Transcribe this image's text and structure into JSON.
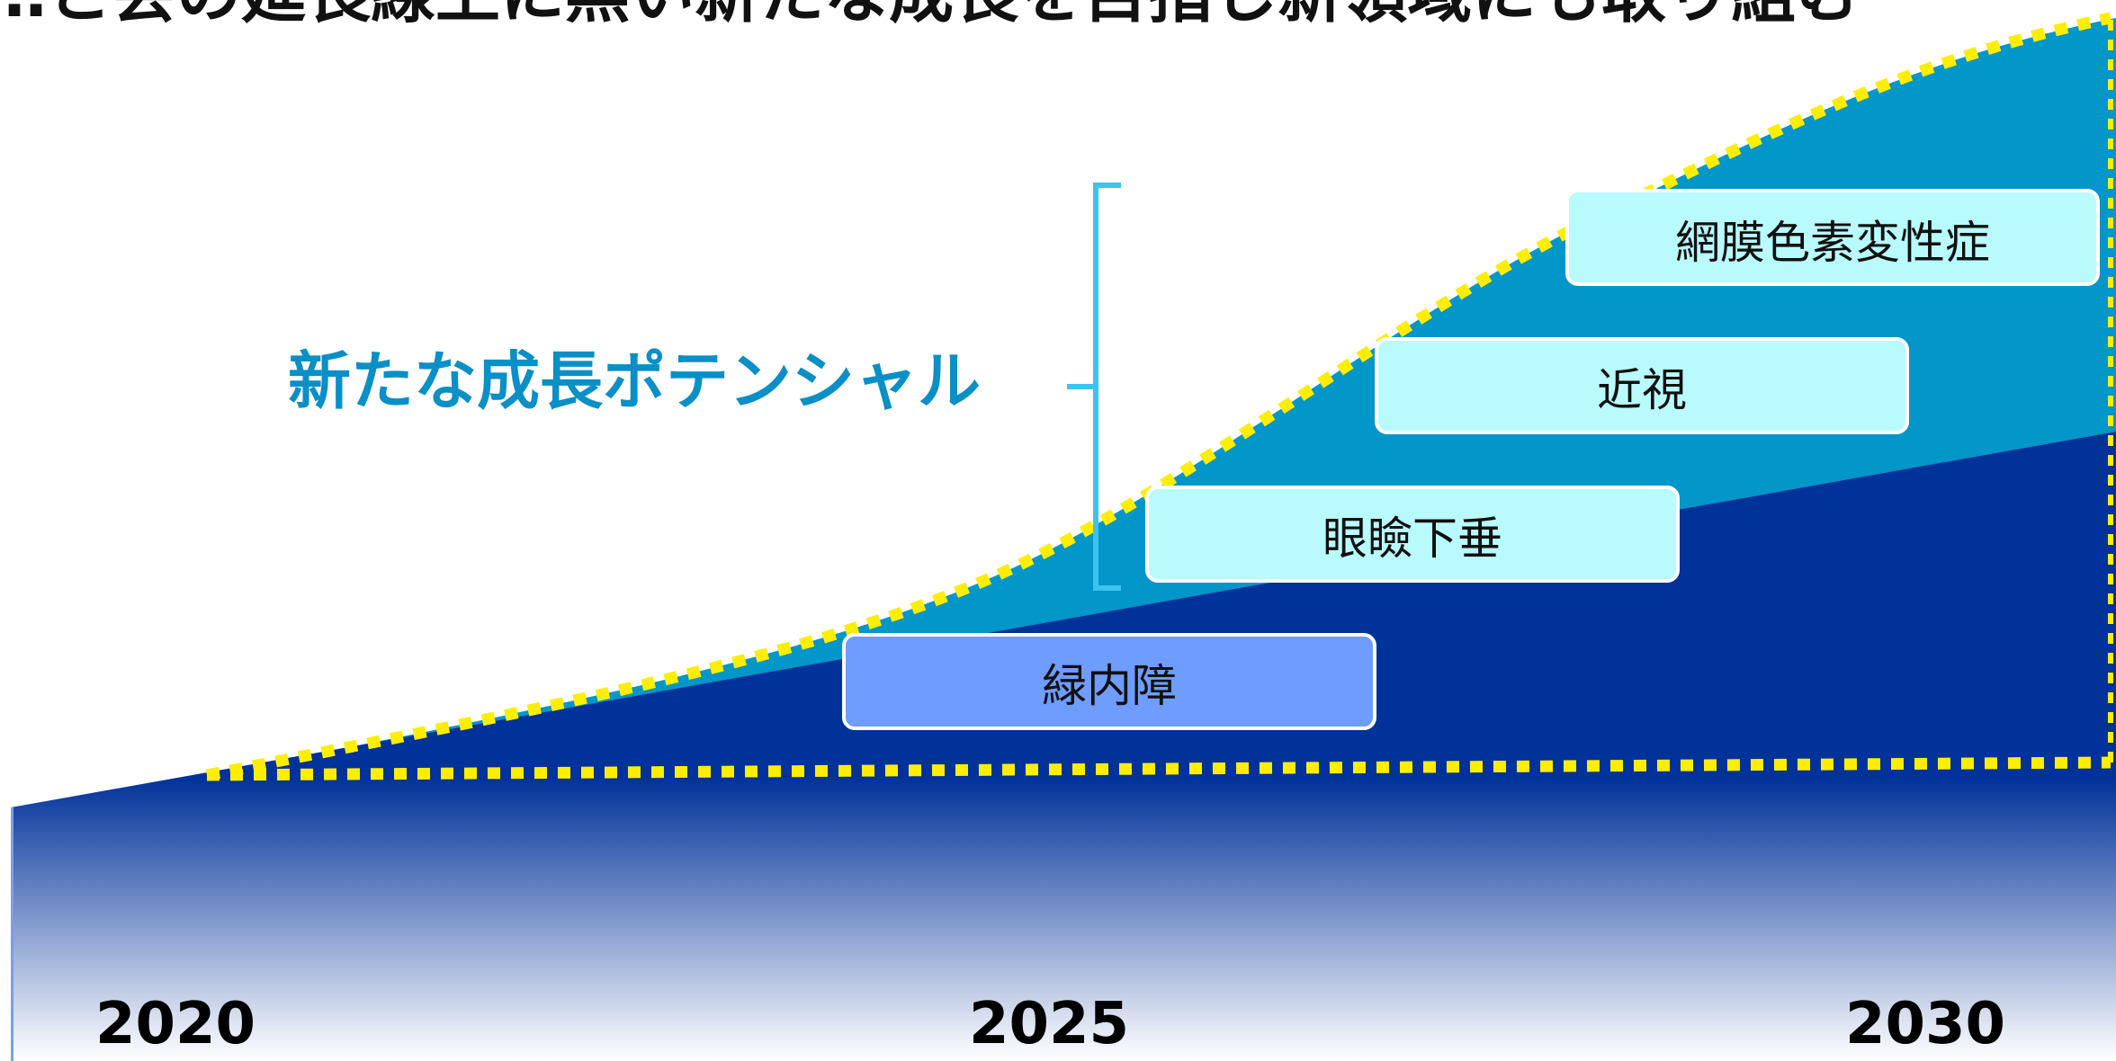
{
  "header": {
    "title": "…と会の延長線上に無い新たな成長を目指し新領域にも取り組む"
  },
  "potential_label": "新たな成長ポテンシャル",
  "years": [
    "2020",
    "2025",
    "2030"
  ],
  "stages": [
    {
      "label": "緑内障"
    },
    {
      "label": "眼瞼下垂"
    },
    {
      "label": "近視"
    },
    {
      "label": "網膜色素変性症"
    }
  ],
  "colors": {
    "base_area": "#00329a",
    "growth_area": "#0396c9",
    "dotted_outline": "#ffee00",
    "glaucoma_box": "#6e9cff",
    "new_box": "#b9fbfd",
    "bracket": "#3cc3ef",
    "potential_text": "#0a8fc7"
  }
}
